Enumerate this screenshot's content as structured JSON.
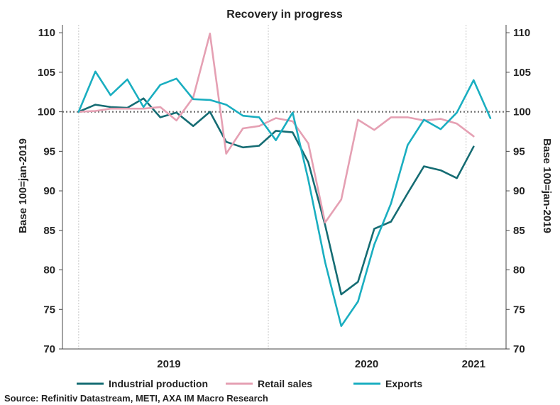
{
  "chart_data": {
    "type": "line",
    "title": "Recovery in progress",
    "ylabel_left": "Base 100=jan-2019",
    "ylabel_right": "Base 100=jan-2019",
    "ylim": [
      70,
      111
    ],
    "yticks": [
      70,
      75,
      80,
      85,
      90,
      95,
      100,
      105,
      110
    ],
    "x": [
      "2019-01",
      "2019-02",
      "2019-03",
      "2019-04",
      "2019-05",
      "2019-06",
      "2019-07",
      "2019-08",
      "2019-09",
      "2019-10",
      "2019-11",
      "2019-12",
      "2020-01",
      "2020-02",
      "2020-03",
      "2020-04",
      "2020-05",
      "2020-06",
      "2020-07",
      "2020-08",
      "2020-09",
      "2020-10",
      "2020-11",
      "2020-12",
      "2021-01",
      "2021-02"
    ],
    "xlim": [
      "2018-12-16",
      "2021-03-16"
    ],
    "year_labels": [
      {
        "label": "2019",
        "date": "2019-07-01"
      },
      {
        "label": "2020",
        "date": "2020-07-01"
      },
      {
        "label": "2021",
        "date": "2021-01-15"
      }
    ],
    "year_separators": [
      "2019-01-15",
      "2020-01-01",
      "2021-01-01"
    ],
    "reference_line": 100,
    "series": [
      {
        "name": "Industrial production",
        "color": "#156c73",
        "values": [
          100.0,
          100.9,
          100.6,
          100.5,
          101.7,
          99.3,
          99.9,
          98.2,
          100.0,
          96.2,
          95.5,
          95.7,
          97.6,
          97.4,
          93.6,
          85.7,
          76.9,
          78.5,
          85.2,
          86.1,
          89.7,
          93.1,
          92.6,
          91.6,
          95.6,
          null
        ]
      },
      {
        "name": "Retail sales",
        "color": "#e5a0b3",
        "values": [
          100.0,
          100.1,
          100.4,
          100.4,
          100.4,
          100.6,
          98.9,
          101.8,
          109.9,
          94.7,
          97.9,
          98.2,
          99.2,
          98.8,
          96.0,
          86.0,
          88.9,
          99.0,
          97.7,
          99.3,
          99.3,
          98.9,
          99.1,
          98.5,
          96.9,
          null
        ]
      },
      {
        "name": "Exports",
        "color": "#1aaec0",
        "values": [
          100.0,
          105.1,
          102.1,
          104.1,
          100.6,
          103.4,
          104.2,
          101.6,
          101.5,
          100.9,
          99.5,
          99.3,
          96.4,
          99.9,
          91.4,
          81.0,
          72.9,
          76.0,
          83.2,
          88.4,
          95.8,
          99.0,
          97.8,
          99.9,
          104.0,
          99.2
        ]
      }
    ],
    "grid": {
      "vertical": true,
      "horizontal": false
    },
    "legend_position": "bottom"
  },
  "source": "Source: Refinitiv Datastream, METI, AXA IM Macro Research"
}
